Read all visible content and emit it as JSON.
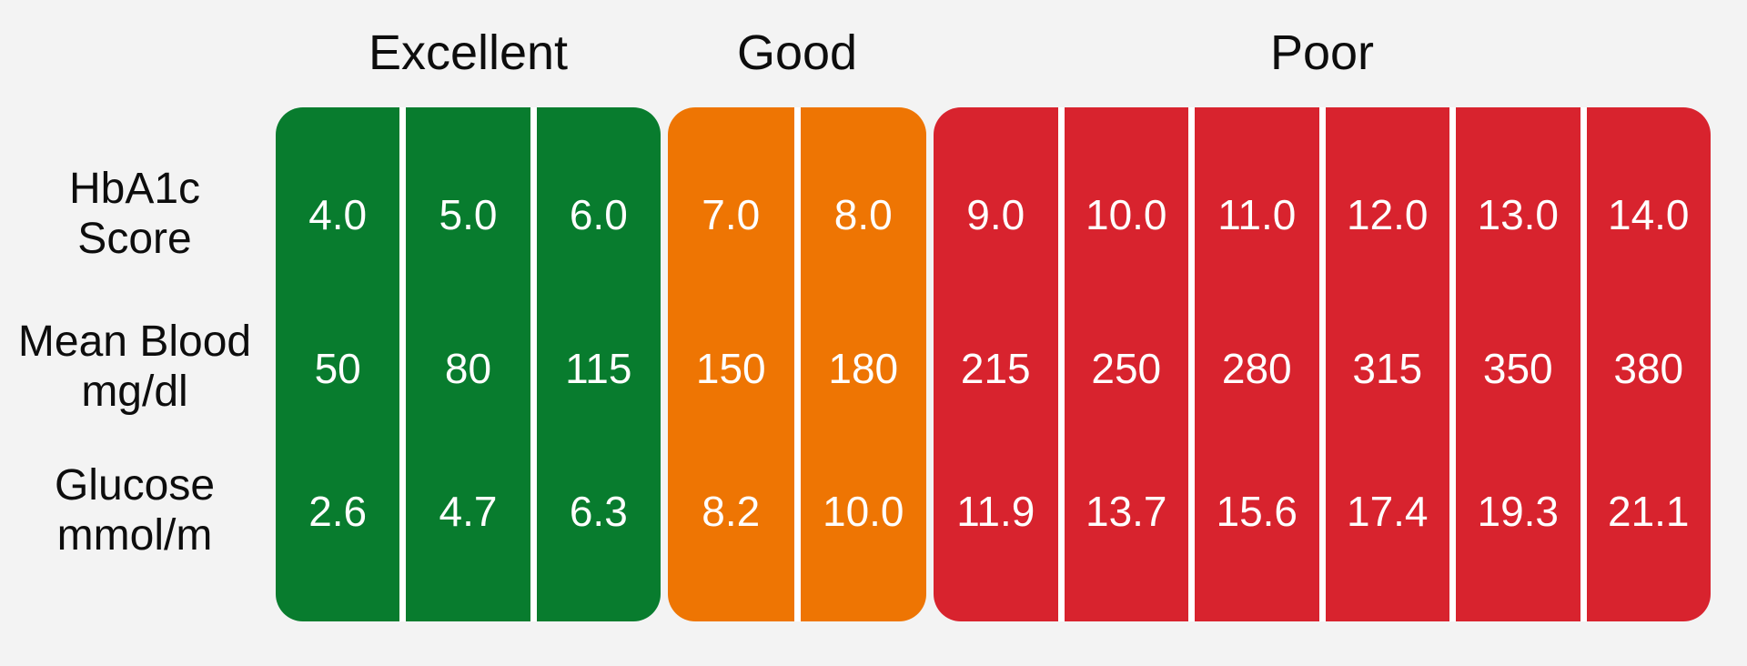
{
  "background": "#f3f3f3",
  "colors": {
    "excellent": "#087c2e",
    "good": "#ee7503",
    "poor": "#d8232e",
    "divider": "#ffffff",
    "header_text": "#0d0d0d",
    "cell_text": "#ffffff"
  },
  "row_labels": [
    {
      "line1": "HbA1c",
      "line2": "Score"
    },
    {
      "line1": "Mean Blood",
      "line2": "mg/dl"
    },
    {
      "line1": "Glucose",
      "line2": "mmol/m"
    }
  ],
  "chart_data": {
    "type": "table",
    "title": "",
    "legend_position": "top",
    "row_names": [
      "HbA1c Score",
      "Mean Blood mg/dl",
      "Glucose mmol/m"
    ],
    "groups": [
      {
        "label": "Excellent",
        "color": "#087c2e",
        "columns": [
          {
            "hba1c": "4.0",
            "mean_blood": "50",
            "glucose": "2.6"
          },
          {
            "hba1c": "5.0",
            "mean_blood": "80",
            "glucose": "4.7"
          },
          {
            "hba1c": "6.0",
            "mean_blood": "115",
            "glucose": "6.3"
          }
        ]
      },
      {
        "label": "Good",
        "color": "#ee7503",
        "columns": [
          {
            "hba1c": "7.0",
            "mean_blood": "150",
            "glucose": "8.2"
          },
          {
            "hba1c": "8.0",
            "mean_blood": "180",
            "glucose": "10.0"
          }
        ]
      },
      {
        "label": "Poor",
        "color": "#d8232e",
        "columns": [
          {
            "hba1c": "9.0",
            "mean_blood": "215",
            "glucose": "11.9"
          },
          {
            "hba1c": "10.0",
            "mean_blood": "250",
            "glucose": "13.7"
          },
          {
            "hba1c": "11.0",
            "mean_blood": "280",
            "glucose": "15.6"
          },
          {
            "hba1c": "12.0",
            "mean_blood": "315",
            "glucose": "17.4"
          },
          {
            "hba1c": "13.0",
            "mean_blood": "350",
            "glucose": "19.3"
          },
          {
            "hba1c": "14.0",
            "mean_blood": "380",
            "glucose": "21.1"
          }
        ]
      }
    ]
  }
}
